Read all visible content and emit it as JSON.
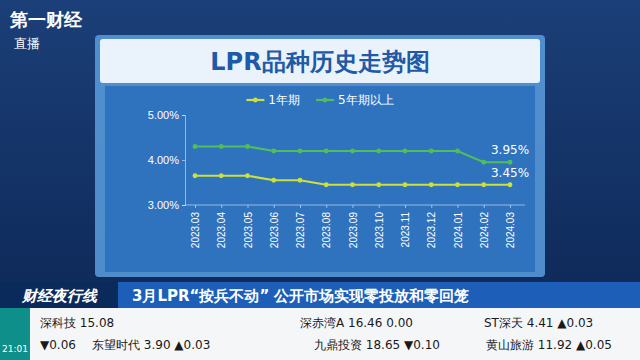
{
  "broadcast": {
    "logo": "第一财经",
    "live": "直播",
    "program": "财经夜行线",
    "headline": "3月LPR“按兵不动” 公开市场实现零投放和零回笼",
    "time": "21:01",
    "ticker": [
      [
        "深科技 15.08",
        "深赤湾A 16.46 0.00",
        "ST深天 4.41 ▲0.03"
      ],
      [
        "▼0.06",
        "东望时代 3.90 ▲0.03",
        "九鼎投资 18.65 ▼0.10",
        "黄山旅游 11.92 ▲0.05"
      ]
    ]
  },
  "chart_data": {
    "type": "line",
    "title": "LPR品种历史走势图",
    "categories": [
      "2023.03",
      "2023.04",
      "2023.05",
      "2023.06",
      "2023.07",
      "2023.08",
      "2023.09",
      "2023.10",
      "2023.11",
      "2023.12",
      "2024.01",
      "2024.02",
      "2024.03"
    ],
    "series": [
      {
        "name": "1年期",
        "color": "#cfe03a",
        "marker": "circle",
        "values": [
          3.65,
          3.65,
          3.65,
          3.55,
          3.55,
          3.45,
          3.45,
          3.45,
          3.45,
          3.45,
          3.45,
          3.45,
          3.45
        ],
        "value_labels": [
          null,
          null,
          null,
          null,
          null,
          null,
          null,
          null,
          null,
          null,
          null,
          null,
          "3.45%"
        ]
      },
      {
        "name": "5年期以上",
        "color": "#4fbf5c",
        "marker": "circle",
        "values": [
          4.3,
          4.3,
          4.3,
          4.2,
          4.2,
          4.2,
          4.2,
          4.2,
          4.2,
          4.2,
          4.2,
          3.95,
          3.95
        ],
        "value_labels": [
          null,
          null,
          null,
          null,
          null,
          null,
          null,
          null,
          null,
          null,
          null,
          null,
          "3.95%"
        ]
      }
    ],
    "ylim": [
      3,
      5
    ],
    "yticks": [
      {
        "value": 3,
        "label": "3.00%"
      },
      {
        "value": 4,
        "label": "4.00%"
      },
      {
        "value": 5,
        "label": "5.00%"
      }
    ],
    "grid": false,
    "legend": "top",
    "data_labels": true
  }
}
